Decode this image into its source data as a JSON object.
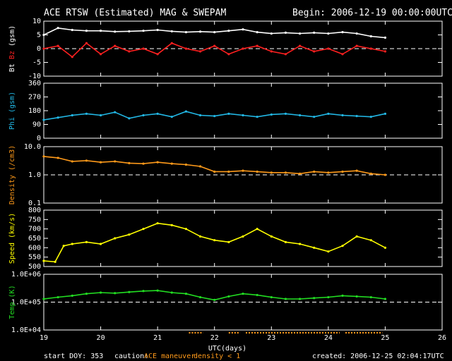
{
  "header": {
    "title": "ACE RTSW (Estimated) MAG & SWEPAM",
    "begin": "Begin: 2006-12-19 00:00:00UTC"
  },
  "footer": {
    "start_doy": "start DOY: 353",
    "caution_label": "caution:",
    "caution_maneuver": "ACE maneuver",
    "caution_density": "density < 1",
    "created": "created: 2006-12-25 02:04:17UTC"
  },
  "colors": {
    "background": "#000000",
    "bt": "#ffffff",
    "bz": "#ff2020",
    "phi": "#22b8e6",
    "density": "#ff9a1a",
    "speed": "#ffff00",
    "temp": "#22dd22"
  },
  "chart_data": [
    {
      "type": "line",
      "panel": "mag",
      "ylabel": [
        "Bt",
        "Bz",
        "(gsm)"
      ],
      "ylabel_colors": [
        "#ffffff",
        "#ff2020",
        "#ffffff"
      ],
      "ylim": [
        -10,
        10
      ],
      "yticks": [
        10,
        5,
        0,
        -5,
        -10
      ],
      "ytick_labels": [
        "10",
        "5",
        "0",
        "-5",
        "-10"
      ],
      "ref_line": 0,
      "series": [
        {
          "name": "Bt",
          "color": "#ffffff",
          "x": [
            19.0,
            19.25,
            19.5,
            19.75,
            20.0,
            20.25,
            20.5,
            20.75,
            21.0,
            21.25,
            21.5,
            21.75,
            22.0,
            22.25,
            22.5,
            22.75,
            23.0,
            23.25,
            23.5,
            23.75,
            24.0,
            24.25,
            24.5,
            24.75,
            25.0
          ],
          "values": [
            5,
            7.5,
            6.8,
            6.5,
            6.5,
            6.2,
            6.3,
            6.5,
            6.8,
            6.3,
            6,
            6.2,
            6,
            6.5,
            7,
            6,
            5.5,
            5.8,
            5.5,
            5.8,
            5.5,
            6,
            5.5,
            4.5,
            4
          ]
        },
        {
          "name": "Bz",
          "color": "#ff2020",
          "x": [
            19.0,
            19.25,
            19.5,
            19.75,
            20.0,
            20.25,
            20.5,
            20.75,
            21.0,
            21.25,
            21.5,
            21.75,
            22.0,
            22.25,
            22.5,
            22.75,
            23.0,
            23.25,
            23.5,
            23.75,
            24.0,
            24.25,
            24.5,
            24.75,
            25.0
          ],
          "values": [
            0,
            1,
            -3,
            2,
            -2,
            1,
            -1,
            0,
            -2,
            2,
            0,
            -1,
            1,
            -2,
            0,
            1,
            -1,
            -2,
            1,
            -1,
            0,
            -2,
            1,
            0,
            -1
          ]
        }
      ]
    },
    {
      "type": "scatter",
      "panel": "phi",
      "ylabel": [
        "Phi (gsm)"
      ],
      "ylabel_colors": [
        "#22b8e6"
      ],
      "ylim": [
        0,
        360
      ],
      "yticks": [
        360,
        270,
        180,
        90,
        0
      ],
      "ytick_labels": [
        "360",
        "270",
        "180",
        "90",
        "0"
      ],
      "series": [
        {
          "name": "Phi",
          "color": "#22b8e6",
          "x": [
            19.0,
            19.25,
            19.5,
            19.75,
            20.0,
            20.25,
            20.5,
            20.75,
            21.0,
            21.25,
            21.5,
            21.75,
            22.0,
            22.25,
            22.5,
            22.75,
            23.0,
            23.25,
            23.5,
            23.75,
            24.0,
            24.25,
            24.5,
            24.75,
            25.0
          ],
          "values": [
            120,
            135,
            150,
            160,
            150,
            170,
            130,
            150,
            160,
            140,
            175,
            150,
            145,
            160,
            150,
            140,
            155,
            160,
            150,
            140,
            160,
            150,
            145,
            140,
            160
          ]
        }
      ]
    },
    {
      "type": "scatter",
      "panel": "density",
      "ylabel": [
        "Density (/cm3)"
      ],
      "ylabel_colors": [
        "#ff9a1a"
      ],
      "yscale": "log",
      "ylim": [
        0.1,
        10
      ],
      "yticks": [
        10,
        1,
        0.1
      ],
      "ytick_labels": [
        "10.0",
        "1.0",
        "0.1"
      ],
      "ref_line": 1,
      "series": [
        {
          "name": "Density",
          "color": "#ff9a1a",
          "x": [
            19.0,
            19.25,
            19.5,
            19.75,
            20.0,
            20.25,
            20.5,
            20.75,
            21.0,
            21.25,
            21.5,
            21.75,
            22.0,
            22.25,
            22.5,
            22.75,
            23.0,
            23.25,
            23.5,
            23.75,
            24.0,
            24.25,
            24.5,
            24.75,
            25.0
          ],
          "values": [
            4.5,
            4.0,
            3.0,
            3.2,
            2.8,
            3.0,
            2.6,
            2.5,
            2.8,
            2.5,
            2.3,
            2.0,
            1.3,
            1.3,
            1.4,
            1.3,
            1.2,
            1.2,
            1.1,
            1.3,
            1.2,
            1.3,
            1.4,
            1.1,
            1.0
          ]
        }
      ]
    },
    {
      "type": "line",
      "panel": "speed",
      "ylabel": [
        "Speed (km/s)"
      ],
      "ylabel_colors": [
        "#ffff00"
      ],
      "ylim": [
        500,
        800
      ],
      "yticks": [
        800,
        750,
        700,
        650,
        600,
        550,
        500
      ],
      "ytick_labels": [
        "800",
        "750",
        "700",
        "650",
        "600",
        "550",
        "500"
      ],
      "series": [
        {
          "name": "Speed",
          "color": "#ffff00",
          "x": [
            19.0,
            19.2,
            19.35,
            19.5,
            19.75,
            20.0,
            20.25,
            20.5,
            20.75,
            21.0,
            21.25,
            21.5,
            21.75,
            22.0,
            22.25,
            22.5,
            22.75,
            23.0,
            23.25,
            23.5,
            23.75,
            24.0,
            24.25,
            24.5,
            24.75,
            25.0
          ],
          "values": [
            530,
            525,
            610,
            620,
            630,
            620,
            650,
            670,
            700,
            730,
            720,
            700,
            660,
            640,
            630,
            660,
            700,
            660,
            630,
            620,
            600,
            580,
            610,
            660,
            640,
            600
          ]
        }
      ]
    },
    {
      "type": "line",
      "panel": "temp",
      "ylabel": [
        "Temp (K)"
      ],
      "ylabel_colors": [
        "#22dd22"
      ],
      "yscale": "log",
      "ylim": [
        10000,
        1000000
      ],
      "yticks": [
        1000000,
        100000,
        10000
      ],
      "ytick_labels": [
        "1.0E+06",
        "1.0E+05",
        "1.0E+04"
      ],
      "ref_line": 100000,
      "series": [
        {
          "name": "Temp",
          "color": "#22dd22",
          "x": [
            19.0,
            19.25,
            19.5,
            19.75,
            20.0,
            20.25,
            20.5,
            20.75,
            21.0,
            21.25,
            21.5,
            21.75,
            22.0,
            22.25,
            22.5,
            22.75,
            23.0,
            23.25,
            23.5,
            23.75,
            24.0,
            24.25,
            24.5,
            24.75,
            25.0
          ],
          "values": [
            130000,
            150000,
            170000,
            200000,
            220000,
            210000,
            230000,
            250000,
            260000,
            220000,
            200000,
            150000,
            120000,
            160000,
            200000,
            180000,
            150000,
            130000,
            130000,
            140000,
            150000,
            170000,
            160000,
            150000,
            130000
          ]
        }
      ]
    }
  ],
  "x_axis": {
    "xlabel": "UTC(days)",
    "xlim": [
      19,
      26
    ],
    "ticks": [
      19,
      20,
      21,
      22,
      23,
      24,
      25,
      26
    ],
    "tick_labels": [
      "19",
      "20",
      "21",
      "22",
      "23",
      "24",
      "25",
      "26"
    ]
  },
  "caution_marks": {
    "maneuver_color": "#ff9a1a",
    "density_color": "#ff9a1a",
    "ranges": [
      [
        21.55,
        21.8
      ],
      [
        22.25,
        22.45
      ],
      [
        22.55,
        24.2
      ],
      [
        24.3,
        24.95
      ]
    ]
  }
}
